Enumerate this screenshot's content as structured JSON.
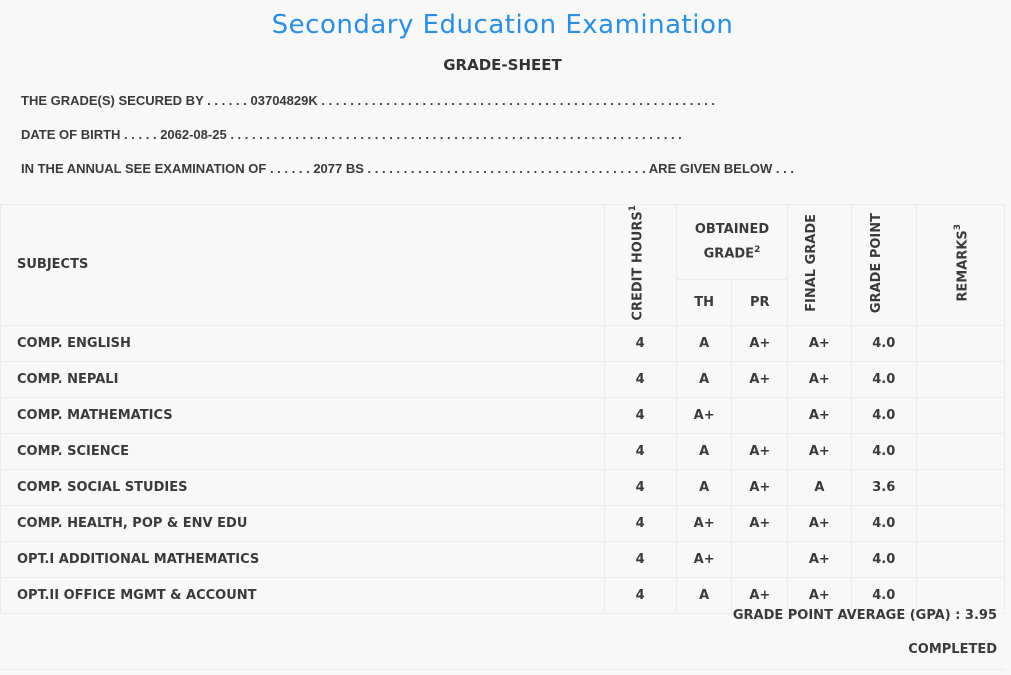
{
  "header": {
    "title": "Secondary Education Examination",
    "subtitle": "GRADE-SHEET"
  },
  "info": {
    "secured_by": {
      "label": "THE GRADE(S) SECURED BY",
      "dots_before": ". . . . . .",
      "value": "03704829K",
      "dots_after": ". . . . . . . . . . . . . . . . . . . . . . . . . . . . . . . . . . . . . . . . . . . . . . . . . . . . . . ."
    },
    "dob": {
      "label": "DATE OF BIRTH",
      "dots_before": ". . . . .",
      "value": "2062-08-25",
      "dots_after": ". . . . . . . . . . . . . . . . . . . . . . . . . . . . . . . . . . . . . . . . . . . . . . . . . . . . . . . . . . . . . . ."
    },
    "exam": {
      "label": "IN THE ANNUAL SEE EXAMINATION OF",
      "dots_before": ". . . . . .",
      "value": "2077 BS",
      "dots_after": ". . . . . . . . . . . . . . . . . . . . . . . . . . . . . . . . . . . . . . .",
      "suffix": "ARE GIVEN BELOW . . ."
    }
  },
  "table": {
    "headers": {
      "subjects": "SUBJECTS",
      "credit": "CREDIT HOURS",
      "credit_sup": "1",
      "obtained": "OBTAINED GRADE",
      "obtained_sup": "2",
      "th": "TH",
      "pr": "PR",
      "final": "FINAL GRADE",
      "gp": "GRADE POINT",
      "remarks": "REMARKS",
      "remarks_sup": "3"
    },
    "rows": [
      {
        "subject": "COMP. ENGLISH",
        "credit": "4",
        "th": "A",
        "pr": "A+",
        "final": "A+",
        "gp": "4.0",
        "remarks": ""
      },
      {
        "subject": "COMP. NEPALI",
        "credit": "4",
        "th": "A",
        "pr": "A+",
        "final": "A+",
        "gp": "4.0",
        "remarks": ""
      },
      {
        "subject": "COMP. MATHEMATICS",
        "credit": "4",
        "th": "A+",
        "pr": "",
        "final": "A+",
        "gp": "4.0",
        "remarks": ""
      },
      {
        "subject": "COMP. SCIENCE",
        "credit": "4",
        "th": "A",
        "pr": "A+",
        "final": "A+",
        "gp": "4.0",
        "remarks": ""
      },
      {
        "subject": "COMP. SOCIAL STUDIES",
        "credit": "4",
        "th": "A",
        "pr": "A+",
        "final": "A",
        "gp": "3.6",
        "remarks": ""
      },
      {
        "subject": "COMP. HEALTH, POP & ENV EDU",
        "credit": "4",
        "th": "A+",
        "pr": "A+",
        "final": "A+",
        "gp": "4.0",
        "remarks": ""
      },
      {
        "subject": "OPT.I ADDITIONAL MATHEMATICS",
        "credit": "4",
        "th": "A+",
        "pr": "",
        "final": "A+",
        "gp": "4.0",
        "remarks": ""
      },
      {
        "subject": "OPT.II OFFICE MGMT & ACCOUNT",
        "credit": "4",
        "th": "A",
        "pr": "A+",
        "final": "A+",
        "gp": "4.0",
        "remarks": ""
      }
    ]
  },
  "footer": {
    "gpa": "GRADE POINT AVERAGE (GPA) : 3.95",
    "status": "COMPLETED"
  },
  "colors": {
    "title": "#2b8ee0",
    "text": "#3a3a3a",
    "background": "#f8f8f8"
  }
}
